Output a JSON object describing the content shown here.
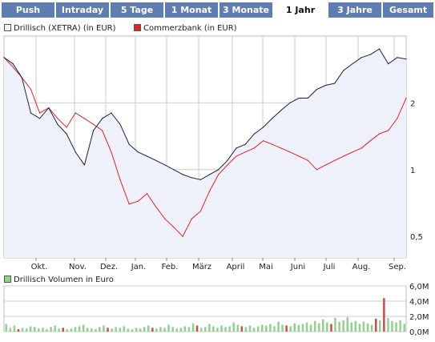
{
  "tabs": [
    {
      "label": "Push",
      "active": false
    },
    {
      "label": "Intraday",
      "active": false
    },
    {
      "label": "5 Tage",
      "active": false
    },
    {
      "label": "1 Monat",
      "active": false
    },
    {
      "label": "3 Monate",
      "active": false
    },
    {
      "label": "1 Jahr",
      "active": true
    },
    {
      "label": "3 Jahre",
      "active": false
    },
    {
      "label": "Gesamt",
      "active": false
    }
  ],
  "colors": {
    "tab_bg": "#5e7eb2",
    "primary_line": "#1a2238",
    "primary_fill": "#eef0fa",
    "secondary_line": "#e02424",
    "grid": "#cccccc",
    "volume_bar": "#8fd18f",
    "volume_bar_highlight": "#d04848"
  },
  "chart_data": [
    {
      "type": "line",
      "y_scale": "log",
      "x": [
        "Sep",
        "Okt",
        "Okt",
        "Okt",
        "Nov",
        "Nov",
        "Nov",
        "Nov",
        "Dez",
        "Dez",
        "Dez",
        "Jan",
        "Jan",
        "Jan",
        "Jan",
        "Feb",
        "Feb",
        "Feb",
        "Feb",
        "März",
        "März",
        "März",
        "März",
        "April",
        "April",
        "April",
        "April",
        "Mai",
        "Mai",
        "Mai",
        "Mai",
        "Juni",
        "Juni",
        "Juni",
        "Juni",
        "Juli",
        "Juli",
        "Juli",
        "Juli",
        "Aug.",
        "Aug.",
        "Aug.",
        "Aug.",
        "Sep.",
        "Sep.",
        "Sep."
      ],
      "x_tick_labels": [
        "Okt.",
        "Nov.",
        "Dez.",
        "Jan.",
        "Feb.",
        "März",
        "April",
        "Mai",
        "Juni",
        "Juli",
        "Aug.",
        "Sep."
      ],
      "y_tick_labels": [
        "0,5",
        "1",
        "2"
      ],
      "y_ticks": [
        0.5,
        1,
        2
      ],
      "ylim": [
        0.4,
        4.0
      ],
      "series": [
        {
          "name": "Drillisch (XETRA)",
          "unit": "(in EUR)",
          "fill": true,
          "values": [
            3.2,
            3.0,
            2.6,
            1.8,
            1.7,
            1.9,
            1.6,
            1.45,
            1.2,
            1.05,
            1.5,
            1.7,
            1.8,
            1.6,
            1.3,
            1.2,
            1.15,
            1.1,
            1.05,
            1.0,
            0.95,
            0.92,
            0.9,
            0.95,
            1.0,
            1.1,
            1.25,
            1.3,
            1.45,
            1.55,
            1.7,
            1.85,
            2.0,
            2.1,
            2.1,
            2.3,
            2.4,
            2.45,
            2.8,
            3.0,
            3.2,
            3.3,
            3.5,
            3.0,
            3.2,
            3.15
          ]
        },
        {
          "name": "Commerzbank",
          "unit": "(in EUR)",
          "fill": false,
          "values": [
            3.2,
            2.9,
            2.6,
            2.3,
            1.8,
            1.9,
            1.7,
            1.55,
            1.8,
            1.7,
            1.6,
            1.5,
            1.2,
            0.9,
            0.7,
            0.72,
            0.78,
            0.68,
            0.6,
            0.55,
            0.5,
            0.6,
            0.65,
            0.8,
            0.95,
            1.05,
            1.15,
            1.2,
            1.25,
            1.35,
            1.3,
            1.25,
            1.2,
            1.15,
            1.1,
            1.0,
            1.05,
            1.1,
            1.15,
            1.2,
            1.25,
            1.35,
            1.45,
            1.5,
            1.7,
            2.1
          ]
        }
      ]
    },
    {
      "type": "bar",
      "title": "Drillisch Volumen in Euro",
      "y_tick_labels": [
        "6,0M",
        "4,0M",
        "2,0M",
        "0,0M"
      ],
      "y_ticks": [
        6000000,
        4000000,
        2000000,
        0
      ],
      "ylim": [
        0,
        6000000
      ],
      "values": [
        1.0,
        0.5,
        0.8,
        0.3,
        0.5,
        0.4,
        0.7,
        0.6,
        0.4,
        0.5,
        0.3,
        0.6,
        0.8,
        0.4,
        0.5,
        0.3,
        0.4,
        0.6,
        0.7,
        0.9,
        0.5,
        0.4,
        0.3,
        0.6,
        0.8,
        0.5,
        0.4,
        0.6,
        0.5,
        0.7,
        0.4,
        0.3,
        0.5,
        0.4,
        0.6,
        0.8,
        0.5,
        0.4,
        0.6,
        0.5,
        0.9,
        0.6,
        0.4,
        0.5,
        0.7,
        0.6,
        1.1,
        0.8,
        0.5,
        0.6,
        1.0,
        0.7,
        0.5,
        0.8,
        0.6,
        0.7,
        1.2,
        0.9,
        0.7,
        0.6,
        0.8,
        0.5,
        0.7,
        0.9,
        0.8,
        1.0,
        0.7,
        1.3,
        0.9,
        0.8,
        0.7,
        1.1,
        0.9,
        1.0,
        1.2,
        0.9,
        1.4,
        1.1,
        1.6,
        1.2,
        1.0,
        1.8,
        1.3,
        1.5,
        1.9,
        1.2,
        1.4,
        1.0,
        1.3,
        1.1,
        0.9,
        1.7,
        1.5,
        4.4,
        1.8,
        1.4,
        1.2,
        1.5,
        1.0
      ]
    }
  ]
}
